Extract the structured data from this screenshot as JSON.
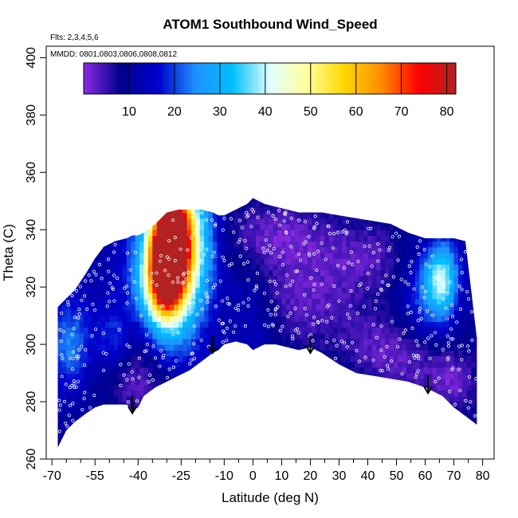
{
  "chart_data": {
    "type": "heatmap",
    "title": "ATOM1 Southbound Wind_Speed",
    "flights_label": "Flts: 2,3,4,5,6",
    "dates_label": "MMDD: 0801,0803,0806,0808,0812",
    "xlabel": "Latitude (deg N)",
    "ylabel": "Theta (C)",
    "xlim": [
      -72,
      84
    ],
    "ylim": [
      260,
      404
    ],
    "x_ticks": [
      -70,
      -55,
      -40,
      -25,
      -10,
      0,
      10,
      20,
      30,
      40,
      50,
      60,
      70,
      80
    ],
    "x_tick_labels": [
      "-70",
      "-55",
      "-40",
      "-25",
      "-10",
      "0",
      "10",
      "20",
      "30",
      "40",
      "50",
      "60",
      "70",
      "80"
    ],
    "x_minor_ticks": [
      -65,
      -60,
      -50,
      -45,
      -35,
      -30,
      -20,
      -15,
      -5,
      5,
      15,
      25,
      35,
      45,
      55,
      65,
      75
    ],
    "y_ticks": [
      260,
      280,
      300,
      320,
      340,
      360,
      380,
      400
    ],
    "y_tick_labels": [
      "260",
      "280",
      "300",
      "320",
      "340",
      "360",
      "380",
      "400"
    ],
    "colorbar": {
      "min": 0,
      "max": 82,
      "ticks": [
        10,
        20,
        30,
        40,
        50,
        60,
        70,
        80
      ],
      "tick_labels": [
        "10",
        "20",
        "30",
        "40",
        "50",
        "60",
        "70",
        "80"
      ],
      "colors": [
        "#8a2be2",
        "#00008b",
        "#0000cd",
        "#1e90ff",
        "#00bfff",
        "#e0ffff",
        "#ffff99",
        "#ffd700",
        "#ff8c00",
        "#ff0000",
        "#b22222"
      ],
      "units": ""
    },
    "field_extent": {
      "lat": [
        -68,
        -65,
        -62,
        -58,
        -55,
        -52,
        -48,
        -44,
        -42,
        -40,
        -38,
        -34,
        -30,
        -26,
        -22,
        -18,
        -14,
        -12,
        -10,
        -6,
        -2,
        0,
        4,
        8,
        12,
        16,
        20,
        24,
        30,
        36,
        42,
        48,
        54,
        60,
        66,
        70,
        74,
        78
      ],
      "theta_top": [
        313,
        316,
        319,
        325,
        330,
        334,
        336,
        337,
        338,
        338,
        339,
        342,
        346,
        347,
        347,
        347,
        346,
        345,
        345,
        347,
        349,
        351,
        349,
        348,
        347,
        346,
        346,
        346,
        345,
        344,
        343,
        342,
        339,
        337,
        337,
        337,
        336,
        302
      ],
      "theta_bottom": [
        264,
        270,
        273,
        276,
        278,
        279,
        279,
        279,
        277,
        278,
        282,
        285,
        287,
        289,
        291,
        294,
        297,
        298,
        300,
        301,
        300,
        298,
        300,
        300,
        299,
        298,
        299,
        297,
        293,
        290,
        289,
        288,
        287,
        285,
        282,
        278,
        275,
        272
      ]
    },
    "wind_features": [
      {
        "lat": -28,
        "theta": 338,
        "value": 72,
        "sx": 4,
        "sy": 11
      },
      {
        "lat": -30,
        "theta": 328,
        "value": 62,
        "sx": 3,
        "sy": 8
      },
      {
        "lat": -31,
        "theta": 322,
        "value": 46,
        "sx": 5,
        "sy": 12
      },
      {
        "lat": -29,
        "theta": 330,
        "value": 38,
        "sx": 9,
        "sy": 24
      },
      {
        "lat": -22,
        "theta": 336,
        "value": 28,
        "sx": 6,
        "sy": 15
      },
      {
        "lat": -38,
        "theta": 302,
        "value": 2,
        "sx": 8,
        "sy": 9
      },
      {
        "lat": -38,
        "theta": 286,
        "value": 2,
        "sx": 8,
        "sy": 8
      },
      {
        "lat": 8,
        "theta": 338,
        "value": 2,
        "sx": 14,
        "sy": 9
      },
      {
        "lat": 16,
        "theta": 315,
        "value": 3,
        "sx": 14,
        "sy": 11
      },
      {
        "lat": 40,
        "theta": 330,
        "value": 4,
        "sx": 12,
        "sy": 9
      },
      {
        "lat": 44,
        "theta": 300,
        "value": 4,
        "sx": 10,
        "sy": 8
      },
      {
        "lat": 66,
        "theta": 323,
        "value": 36,
        "sx": 4,
        "sy": 9
      },
      {
        "lat": 60,
        "theta": 318,
        "value": 20,
        "sx": 6,
        "sy": 12
      },
      {
        "lat": -64,
        "theta": 300,
        "value": 24,
        "sx": 5,
        "sy": 11
      },
      {
        "lat": -48,
        "theta": 302,
        "value": 20,
        "sx": 5,
        "sy": 8
      },
      {
        "lat": 0,
        "theta": 310,
        "value": 16,
        "sx": 6,
        "sy": 14
      },
      {
        "lat": 70,
        "theta": 287,
        "value": 3,
        "sx": 6,
        "sy": 8
      },
      {
        "lat": 56,
        "theta": 292,
        "value": 5,
        "sx": 9,
        "sy": 8
      },
      {
        "lat": -52,
        "theta": 318,
        "value": 12,
        "sx": 8,
        "sy": 10
      }
    ],
    "wind_background": 10,
    "tropopause_arrows": [
      {
        "lat": -42,
        "theta": 276
      },
      {
        "lat": -14,
        "theta": 297
      },
      {
        "lat": 20,
        "theta": 297
      },
      {
        "lat": 61,
        "theta": 283
      }
    ]
  }
}
